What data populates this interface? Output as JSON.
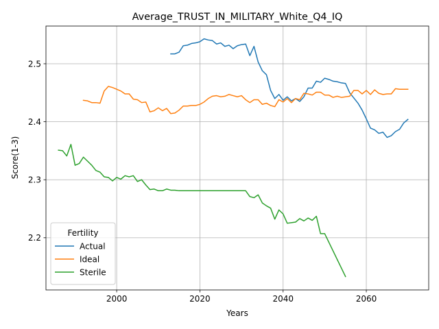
{
  "chart_data": {
    "type": "line",
    "title": "Average_TRUST_IN_MILITARY_White_Q4_IQ",
    "xlabel": "Years",
    "ylabel": "Score(1-3)",
    "xlim": [
      1983,
      2075
    ],
    "ylim": [
      2.11,
      2.565
    ],
    "xticks": [
      2000,
      2020,
      2040,
      2060
    ],
    "yticks": [
      2.2,
      2.3,
      2.4,
      2.5
    ],
    "xtick_labels": [
      "2000",
      "2020",
      "2040",
      "2060"
    ],
    "ytick_labels": [
      "2.2",
      "2.3",
      "2.4",
      "2.5"
    ],
    "grid": true,
    "legend": {
      "title": "Fertility",
      "position": "lower-left"
    },
    "series": [
      {
        "name": "Actual",
        "color": "#1f77b4",
        "x": [
          2013,
          2014,
          2015,
          2016,
          2017,
          2018,
          2019,
          2020,
          2021,
          2022,
          2023,
          2024,
          2025,
          2026,
          2027,
          2028,
          2029,
          2030,
          2031,
          2032,
          2033,
          2034,
          2035,
          2036,
          2037,
          2038,
          2039,
          2040,
          2041,
          2042,
          2043,
          2044,
          2045,
          2046,
          2047,
          2048,
          2049,
          2050,
          2051,
          2052,
          2053,
          2054,
          2055,
          2056,
          2057,
          2058,
          2059,
          2060,
          2061,
          2062,
          2063,
          2064,
          2065,
          2066,
          2067,
          2068,
          2069,
          2070
        ],
        "y": [
          2.517,
          2.517,
          2.52,
          2.531,
          2.532,
          2.535,
          2.536,
          2.538,
          2.543,
          2.541,
          2.54,
          2.534,
          2.536,
          2.53,
          2.532,
          2.526,
          2.531,
          2.533,
          2.534,
          2.514,
          2.53,
          2.503,
          2.488,
          2.481,
          2.454,
          2.44,
          2.447,
          2.437,
          2.443,
          2.436,
          2.44,
          2.435,
          2.443,
          2.458,
          2.458,
          2.47,
          2.468,
          2.475,
          2.473,
          2.47,
          2.469,
          2.467,
          2.466,
          2.45,
          2.441,
          2.432,
          2.42,
          2.405,
          2.389,
          2.386,
          2.38,
          2.382,
          2.373,
          2.376,
          2.383,
          2.387,
          2.398,
          2.404
        ]
      },
      {
        "name": "Ideal",
        "color": "#ff7f0e",
        "x": [
          1992,
          1993,
          1994,
          1995,
          1996,
          1997,
          1998,
          1999,
          2000,
          2001,
          2002,
          2003,
          2004,
          2005,
          2006,
          2007,
          2008,
          2009,
          2010,
          2011,
          2012,
          2013,
          2014,
          2015,
          2016,
          2017,
          2018,
          2019,
          2020,
          2021,
          2022,
          2023,
          2024,
          2025,
          2026,
          2027,
          2028,
          2029,
          2030,
          2031,
          2032,
          2033,
          2034,
          2035,
          2036,
          2037,
          2038,
          2039,
          2040,
          2041,
          2042,
          2043,
          2044,
          2045,
          2046,
          2047,
          2048,
          2049,
          2050,
          2051,
          2052,
          2053,
          2054,
          2055,
          2056,
          2057,
          2058,
          2059,
          2060,
          2061,
          2062,
          2063,
          2064,
          2065,
          2066,
          2067,
          2068,
          2069,
          2070
        ],
        "y": [
          2.437,
          2.436,
          2.433,
          2.433,
          2.432,
          2.453,
          2.461,
          2.459,
          2.456,
          2.453,
          2.448,
          2.448,
          2.439,
          2.438,
          2.433,
          2.434,
          2.417,
          2.419,
          2.424,
          2.419,
          2.423,
          2.414,
          2.415,
          2.42,
          2.427,
          2.427,
          2.428,
          2.428,
          2.43,
          2.434,
          2.44,
          2.444,
          2.445,
          2.443,
          2.444,
          2.447,
          2.445,
          2.443,
          2.445,
          2.438,
          2.433,
          2.438,
          2.438,
          2.43,
          2.432,
          2.428,
          2.426,
          2.438,
          2.434,
          2.44,
          2.433,
          2.44,
          2.438,
          2.449,
          2.448,
          2.446,
          2.451,
          2.451,
          2.446,
          2.446,
          2.442,
          2.444,
          2.442,
          2.443,
          2.444,
          2.454,
          2.454,
          2.448,
          2.454,
          2.447,
          2.455,
          2.449,
          2.447,
          2.448,
          2.448,
          2.457,
          2.456,
          2.456,
          2.456
        ]
      },
      {
        "name": "Sterile",
        "color": "#2ca02c",
        "x": [
          1986,
          1987,
          1988,
          1989,
          1990,
          1991,
          1992,
          1993,
          1994,
          1995,
          1996,
          1997,
          1998,
          1999,
          2000,
          2001,
          2002,
          2003,
          2004,
          2005,
          2006,
          2007,
          2008,
          2009,
          2010,
          2011,
          2012,
          2013,
          2014,
          2015,
          2016,
          2017,
          2018,
          2019,
          2020,
          2021,
          2022,
          2023,
          2024,
          2025,
          2026,
          2027,
          2028,
          2029,
          2030,
          2031,
          2032,
          2033,
          2034,
          2035,
          2036,
          2037,
          2038,
          2039,
          2040,
          2041,
          2042,
          2043,
          2044,
          2045,
          2046,
          2047,
          2048,
          2049,
          2050,
          2055
        ],
        "y": [
          2.351,
          2.35,
          2.341,
          2.361,
          2.325,
          2.328,
          2.339,
          2.332,
          2.325,
          2.316,
          2.313,
          2.305,
          2.304,
          2.298,
          2.304,
          2.301,
          2.307,
          2.305,
          2.307,
          2.297,
          2.3,
          2.291,
          2.283,
          2.284,
          2.281,
          2.281,
          2.284,
          2.282,
          2.282,
          2.281,
          2.281,
          2.281,
          2.281,
          2.281,
          2.281,
          2.281,
          2.281,
          2.281,
          2.281,
          2.281,
          2.281,
          2.281,
          2.281,
          2.281,
          2.281,
          2.281,
          2.271,
          2.269,
          2.274,
          2.26,
          2.255,
          2.251,
          2.232,
          2.248,
          2.241,
          2.225,
          2.226,
          2.227,
          2.233,
          2.229,
          2.234,
          2.23,
          2.237,
          2.207,
          2.207,
          2.133
        ]
      }
    ]
  }
}
